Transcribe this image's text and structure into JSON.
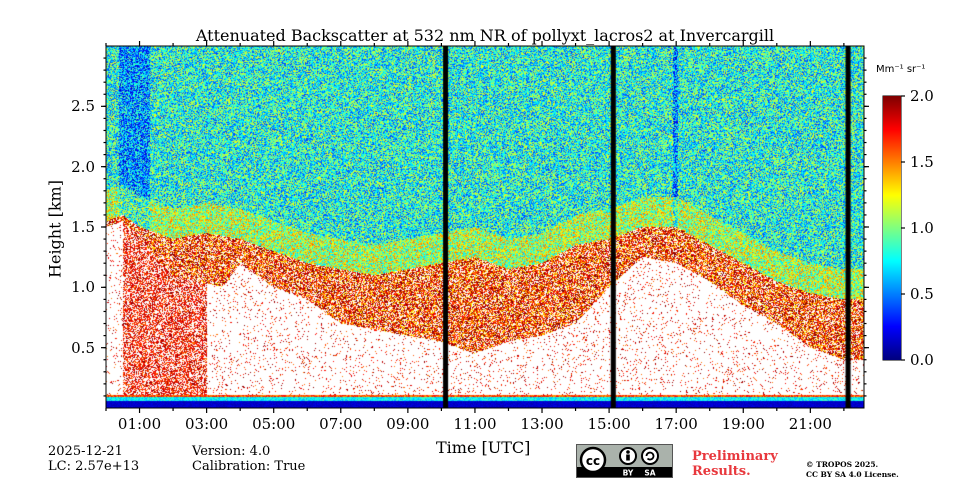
{
  "chart_data": {
    "type": "heatmap",
    "title": "Attenuated Backscatter at 532 nm NR of pollyxt_lacros2 at Invercargill",
    "xlabel": "Time [UTC]",
    "ylabel": "Height [km]",
    "x_tick_labels": [
      "01:00",
      "03:00",
      "05:00",
      "07:00",
      "09:00",
      "11:00",
      "13:00",
      "15:00",
      "17:00",
      "19:00",
      "21:00"
    ],
    "x_tick_hours": [
      1,
      3,
      5,
      7,
      9,
      11,
      13,
      15,
      17,
      19,
      21
    ],
    "xlim_hours": [
      0,
      22.6
    ],
    "y_tick_labels": [
      "0.5",
      "1.0",
      "1.5",
      "2.0",
      "2.5"
    ],
    "y_ticks": [
      0.5,
      1.0,
      1.5,
      2.0,
      2.5
    ],
    "ylim": [
      0,
      3.0
    ],
    "colorbar": {
      "unit": "Mm⁻¹ sr⁻¹",
      "tick_labels": [
        "0.0",
        "0.5",
        "1.0",
        "1.5",
        "2.0"
      ],
      "ticks": [
        0.0,
        0.5,
        1.0,
        1.5,
        2.0
      ],
      "range": [
        0.0,
        2.0
      ],
      "colormap": "jet"
    },
    "gaps_hours": [
      {
        "start": 10.05,
        "end": 10.2
      },
      {
        "start": 15.05,
        "end": 15.2
      },
      {
        "start": 22.05,
        "end": 22.2
      }
    ],
    "layer_top_km_by_hour": [
      [
        0.0,
        1.55
      ],
      [
        0.5,
        1.6
      ],
      [
        1.0,
        1.5
      ],
      [
        1.5,
        1.45
      ],
      [
        2.0,
        1.4
      ],
      [
        3.0,
        1.45
      ],
      [
        4.0,
        1.4
      ],
      [
        5.0,
        1.3
      ],
      [
        6.0,
        1.2
      ],
      [
        7.0,
        1.15
      ],
      [
        8.0,
        1.1
      ],
      [
        9.0,
        1.15
      ],
      [
        10.0,
        1.2
      ],
      [
        11.0,
        1.25
      ],
      [
        12.0,
        1.15
      ],
      [
        13.0,
        1.2
      ],
      [
        14.0,
        1.35
      ],
      [
        15.0,
        1.4
      ],
      [
        16.0,
        1.5
      ],
      [
        17.0,
        1.5
      ],
      [
        18.0,
        1.35
      ],
      [
        19.0,
        1.2
      ],
      [
        20.0,
        1.05
      ],
      [
        21.0,
        0.95
      ],
      [
        22.0,
        0.9
      ],
      [
        22.6,
        0.9
      ]
    ],
    "clear_region_top_km_by_hour": [
      [
        0.0,
        1.5
      ],
      [
        0.5,
        1.55
      ],
      [
        1.0,
        1.4
      ],
      [
        2.0,
        1.1
      ],
      [
        3.5,
        1.0
      ],
      [
        4.0,
        1.2
      ],
      [
        5.0,
        1.0
      ],
      [
        6.0,
        0.9
      ],
      [
        7.0,
        0.7
      ],
      [
        8.0,
        0.65
      ],
      [
        9.0,
        0.6
      ],
      [
        10.0,
        0.55
      ],
      [
        11.0,
        0.45
      ],
      [
        12.0,
        0.55
      ],
      [
        13.0,
        0.6
      ],
      [
        14.0,
        0.7
      ],
      [
        15.0,
        1.0
      ],
      [
        16.0,
        1.25
      ],
      [
        17.0,
        1.2
      ],
      [
        18.0,
        1.05
      ],
      [
        19.0,
        0.85
      ],
      [
        20.0,
        0.7
      ],
      [
        21.0,
        0.5
      ],
      [
        22.0,
        0.4
      ],
      [
        22.6,
        0.4
      ]
    ],
    "dense_low_aerosol_hours": [
      0.5,
      3.0
    ]
  },
  "footer": {
    "date": "2025-12-21",
    "lidar_constant": "LC: 2.57e+13",
    "version": "Version: 4.0",
    "calibration": "Calibration: True",
    "preliminary_line1": "Preliminary",
    "preliminary_line2": "Results.",
    "copyright_line1": "© TROPOS 2025.",
    "copyright_line2": "CC BY SA 4.0 License.",
    "license_badge": {
      "cc": "cc",
      "by": "BY",
      "sa": "SA"
    }
  }
}
